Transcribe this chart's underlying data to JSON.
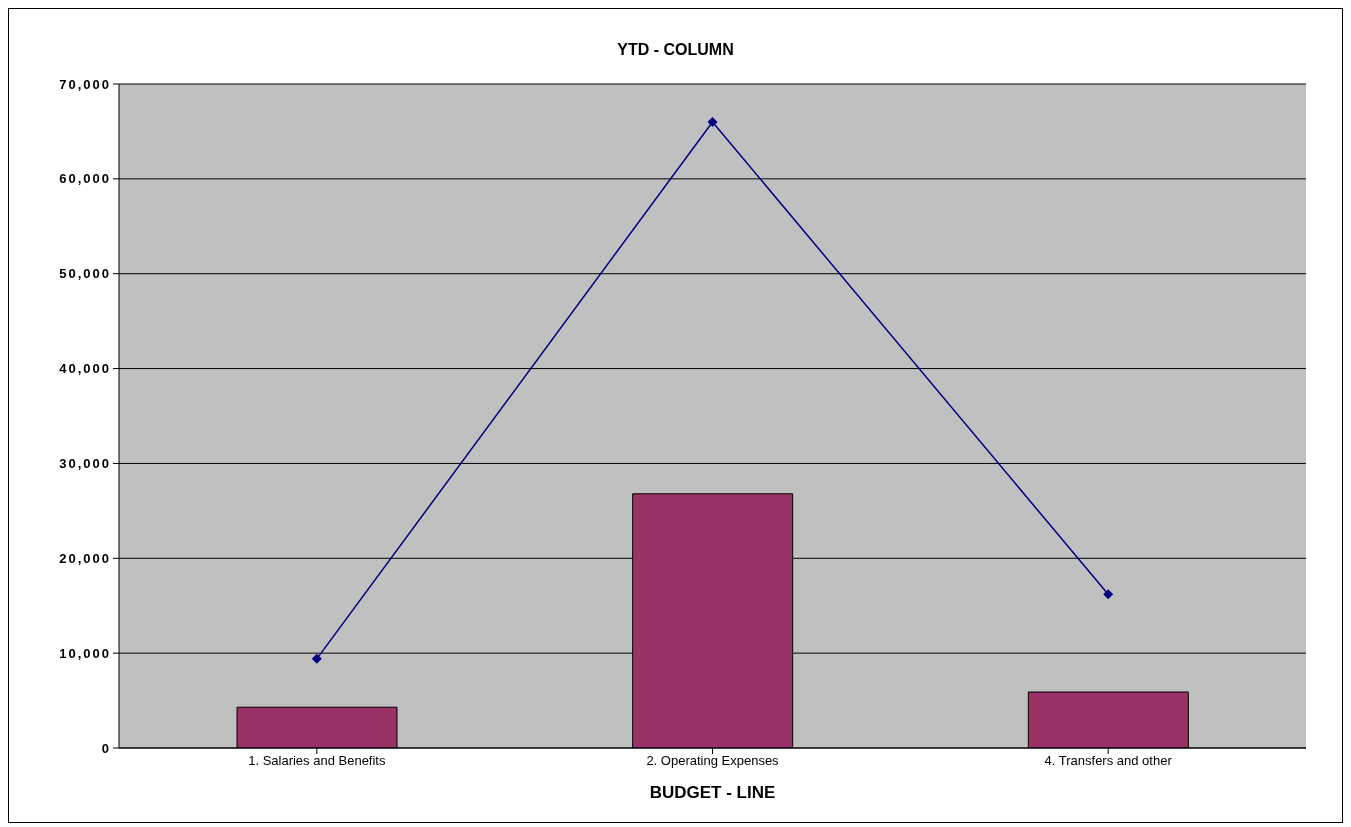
{
  "chart_data": {
    "type": "bar",
    "title": "YTD - COLUMN",
    "xlabel": "BUDGET - LINE",
    "categories": [
      "1. Salaries and Benefits",
      "2. Operating Expenses",
      "4. Transfers and other"
    ],
    "series": [
      {
        "color": "#993366",
        "values": [
          4300,
          26800,
          5900
        ]
      },
      {
        "type": "line",
        "color": "#000080",
        "values": [
          9400,
          66000,
          16200
        ]
      }
    ],
    "ylim": [
      0,
      70000
    ],
    "yticks": [
      {
        "value": 0,
        "label": "0"
      },
      {
        "value": 10000,
        "label": "10,000"
      },
      {
        "value": 20000,
        "label": "20,000"
      },
      {
        "value": 30000,
        "label": "30,000"
      },
      {
        "value": 40000,
        "label": "40,000"
      },
      {
        "value": 50000,
        "label": "50,000"
      },
      {
        "value": 60000,
        "label": "60,000"
      },
      {
        "value": 70000,
        "label": "70,000"
      }
    ],
    "grid": "y",
    "legend": false,
    "marker": "diamond",
    "line_style": "solid"
  }
}
